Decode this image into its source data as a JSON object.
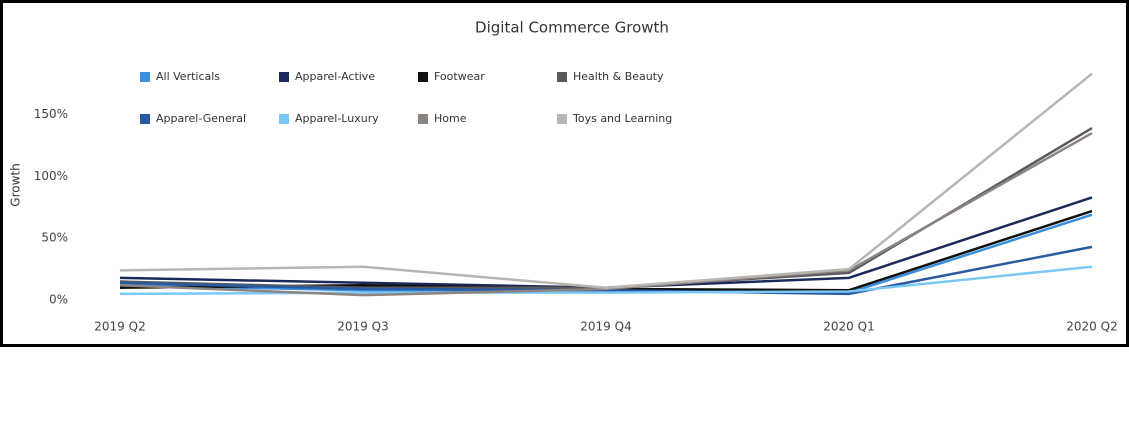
{
  "chart_data": {
    "type": "line",
    "title": "Digital Commerce Growth",
    "y_label": "Growth",
    "categories": [
      "2019 Q2",
      "2019 Q3",
      "2019 Q4",
      "2020 Q1",
      "2020 Q2"
    ],
    "series": [
      {
        "name": "All Verticals",
        "color": "#3b8fe0",
        "values": [
          12,
          8,
          7,
          6,
          69
        ]
      },
      {
        "name": "Apparel-Active",
        "color": "#1b2a5a",
        "values": [
          18,
          14,
          10,
          18,
          83
        ]
      },
      {
        "name": "Footwear",
        "color": "#111111",
        "values": [
          10,
          12,
          9,
          8,
          72
        ]
      },
      {
        "name": "Health & Beauty",
        "color": "#5a5a5e",
        "values": [
          15,
          10,
          10,
          22,
          139
        ]
      },
      {
        "name": "Apparel-General",
        "color": "#2a5aa0",
        "values": [
          14,
          9,
          8,
          5,
          43
        ]
      },
      {
        "name": "Apparel-Luxury",
        "color": "#7cc8f5",
        "values": [
          5,
          6,
          6,
          7,
          27
        ]
      },
      {
        "name": "Home",
        "color": "#8c8480",
        "values": [
          12,
          4,
          9,
          24,
          135
        ]
      },
      {
        "name": "Toys and Learning",
        "color": "#b9b5b1",
        "values": [
          24,
          27,
          10,
          25,
          183
        ]
      }
    ],
    "ylim": [
      -8,
      190
    ],
    "yticks": [
      {
        "value": 0,
        "label": "0%"
      },
      {
        "value": 50,
        "label": "50%"
      },
      {
        "value": 100,
        "label": "100%"
      },
      {
        "value": 150,
        "label": "150%"
      }
    ],
    "grid": false
  }
}
